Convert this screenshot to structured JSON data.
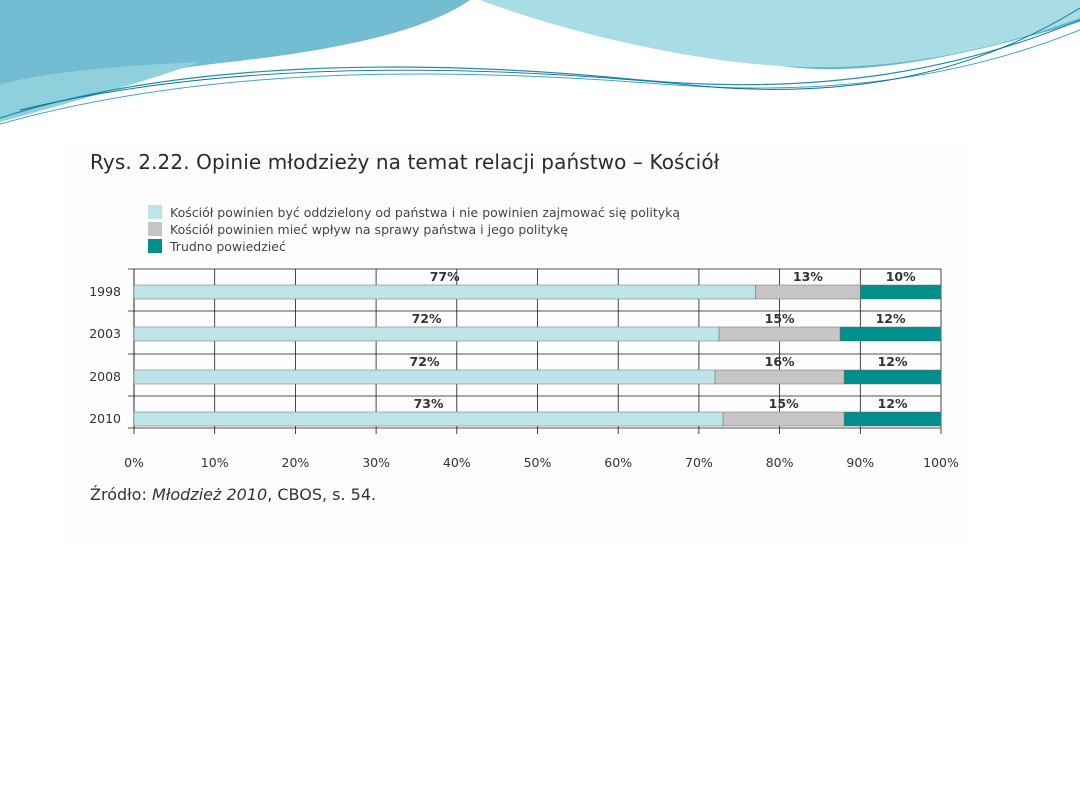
{
  "colors": {
    "separate": "#bfe4e8",
    "influence": "#c6c4c7",
    "dont_know": "#008f8c",
    "grid": "#1a1a1a",
    "wave_dark": "#5fb3cc",
    "wave_light": "#a8dde4"
  },
  "chart_data": {
    "type": "bar",
    "orientation": "horizontal",
    "stacked": true,
    "title": "Rys. 2.22. Opinie młodzieży na temat relacji państwo – Kościół",
    "categories": [
      "1998",
      "2003",
      "2008",
      "2010"
    ],
    "series": [
      {
        "name": "Kościół powinien być oddzielony od państwa i nie powinien zajmować się polityką",
        "values": [
          77,
          72.5,
          72,
          73
        ],
        "labels": [
          "77%",
          "72%",
          "72%",
          "73%"
        ]
      },
      {
        "name": "Kościół powinien mieć wpływ na sprawy państwa i jego politykę",
        "values": [
          13,
          15,
          16,
          15
        ],
        "labels": [
          "13%",
          "15%",
          "16%",
          "15%"
        ]
      },
      {
        "name": "Trudno powiedzieć",
        "values": [
          10,
          12.5,
          12,
          12
        ],
        "labels": [
          "10%",
          "12%",
          "12%",
          "12%"
        ]
      }
    ],
    "xlim": [
      0,
      100
    ],
    "xticks": [
      "0%",
      "10%",
      "20%",
      "30%",
      "40%",
      "50%",
      "60%",
      "70%",
      "80%",
      "90%",
      "100%"
    ],
    "grid": true,
    "legend_position": "top-left"
  },
  "source": {
    "prefix": "Źródło: ",
    "title": "Młodzież 2010",
    "suffix": ", CBOS, s. 54."
  }
}
